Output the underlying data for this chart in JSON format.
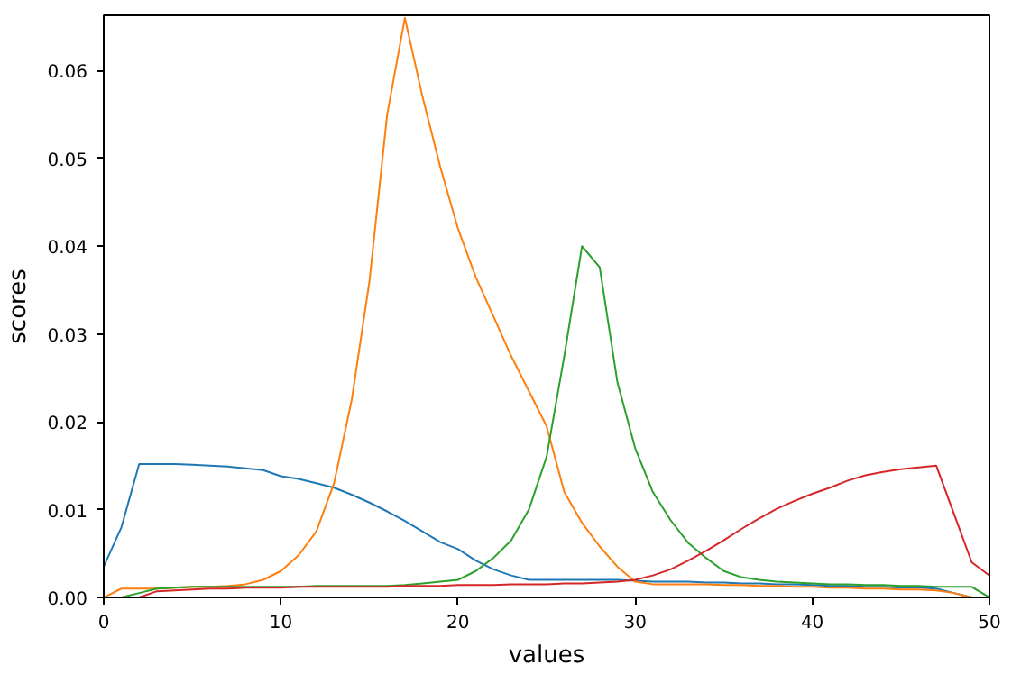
{
  "chart_data": {
    "type": "line",
    "xlabel": "values",
    "ylabel": "scores",
    "x": [
      0,
      1,
      2,
      3,
      4,
      5,
      6,
      7,
      8,
      9,
      10,
      11,
      12,
      13,
      14,
      15,
      16,
      17,
      18,
      19,
      20,
      21,
      22,
      23,
      24,
      25,
      26,
      27,
      28,
      29,
      30,
      31,
      32,
      33,
      34,
      35,
      36,
      37,
      38,
      39,
      40,
      41,
      42,
      43,
      44,
      45,
      46,
      47,
      48,
      49,
      50
    ],
    "xlim": [
      0,
      50
    ],
    "ylim": [
      0,
      0.0663
    ],
    "xticks": [
      0,
      10,
      20,
      30,
      40,
      50
    ],
    "yticks": [
      {
        "value": 0,
        "label": "0.00"
      },
      {
        "value": 0.01,
        "label": "0.01"
      },
      {
        "value": 0.02,
        "label": "0.02"
      },
      {
        "value": 0.03,
        "label": "0.03"
      },
      {
        "value": 0.04,
        "label": "0.04"
      },
      {
        "value": 0.05,
        "label": "0.05"
      },
      {
        "value": 0.06,
        "label": "0.06"
      }
    ],
    "line_style": "solid",
    "series": [
      {
        "color": "#1f77b4",
        "values": [
          0.0035,
          0.008,
          0.0152,
          0.0152,
          0.0152,
          0.0151,
          0.015,
          0.0149,
          0.0147,
          0.0145,
          0.0138,
          0.0135,
          0.013,
          0.0125,
          0.0117,
          0.0108,
          0.0098,
          0.0087,
          0.0075,
          0.0063,
          0.0055,
          0.0042,
          0.0032,
          0.0025,
          0.002,
          0.002,
          0.002,
          0.002,
          0.002,
          0.002,
          0.0019,
          0.0018,
          0.0018,
          0.0018,
          0.0017,
          0.0017,
          0.0016,
          0.0016,
          0.0015,
          0.0015,
          0.0014,
          0.0013,
          0.0013,
          0.0012,
          0.0012,
          0.0011,
          0.0011,
          0.001,
          0.0005,
          0,
          0
        ]
      },
      {
        "color": "#ff7f0e",
        "values": [
          0,
          0.001,
          0.001,
          0.001,
          0.0011,
          0.0012,
          0.0012,
          0.0013,
          0.0015,
          0.002,
          0.003,
          0.0048,
          0.0075,
          0.013,
          0.0225,
          0.036,
          0.055,
          0.066,
          0.057,
          0.049,
          0.042,
          0.0365,
          0.032,
          0.0275,
          0.0235,
          0.0195,
          0.012,
          0.0085,
          0.0058,
          0.0035,
          0.0018,
          0.0015,
          0.0015,
          0.0015,
          0.0015,
          0.0014,
          0.0014,
          0.0013,
          0.0013,
          0.0012,
          0.0012,
          0.0011,
          0.0011,
          0.001,
          0.001,
          0.0009,
          0.0009,
          0.0008,
          0.0005,
          0,
          0
        ]
      },
      {
        "color": "#2ca02c",
        "values": [
          0,
          0,
          0.0005,
          0.001,
          0.0011,
          0.0012,
          0.0012,
          0.0012,
          0.0012,
          0.0012,
          0.0012,
          0.0012,
          0.0013,
          0.0013,
          0.0013,
          0.0013,
          0.0013,
          0.0014,
          0.0016,
          0.0018,
          0.002,
          0.003,
          0.0045,
          0.0065,
          0.01,
          0.016,
          0.0275,
          0.04,
          0.0376,
          0.0245,
          0.017,
          0.012,
          0.0088,
          0.0062,
          0.0045,
          0.003,
          0.0023,
          0.002,
          0.0018,
          0.0017,
          0.0016,
          0.0015,
          0.0015,
          0.0014,
          0.0014,
          0.0013,
          0.0013,
          0.0012,
          0.0012,
          0.0012,
          0
        ]
      },
      {
        "color": "#d62728",
        "values": [
          0,
          0,
          0,
          0.0007,
          0.0008,
          0.0009,
          0.001,
          0.001,
          0.0011,
          0.0011,
          0.0011,
          0.0012,
          0.0012,
          0.0012,
          0.0012,
          0.0012,
          0.0012,
          0.0013,
          0.0013,
          0.0013,
          0.0014,
          0.0014,
          0.0014,
          0.0015,
          0.0015,
          0.0015,
          0.0016,
          0.0016,
          0.0017,
          0.0018,
          0.002,
          0.0025,
          0.0032,
          0.0042,
          0.0053,
          0.0065,
          0.0078,
          0.009,
          0.0101,
          0.011,
          0.0118,
          0.0125,
          0.0133,
          0.0139,
          0.0143,
          0.0146,
          0.0148,
          0.015,
          0.0095,
          0.004,
          0.0025
        ]
      }
    ]
  }
}
